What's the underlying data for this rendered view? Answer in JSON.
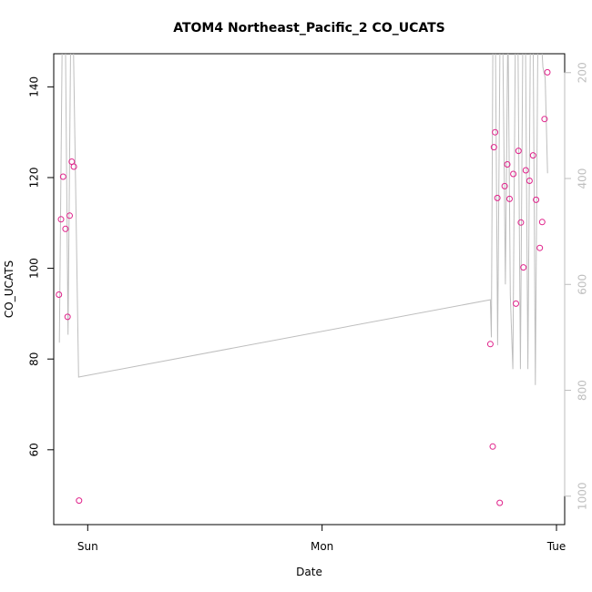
{
  "chart_data": {
    "type": "scatter",
    "title": "ATOM4 Northeast_Pacific_2 CO_UCATS",
    "xlabel": "Date",
    "ylabel": "CO_UCATS",
    "xlim": [
      -0.145,
      2.035
    ],
    "ylim": [
      43.5,
      147.3
    ],
    "x_ticks": [
      {
        "label": "Sun",
        "value": 0
      },
      {
        "label": "Mon",
        "value": 1
      },
      {
        "label": "Tue",
        "value": 2
      }
    ],
    "y_ticks": [
      60,
      80,
      100,
      120,
      140
    ],
    "y2": {
      "lim": [
        1053.7,
        164.3
      ],
      "ticks": [
        200,
        400,
        600,
        800,
        1000
      ],
      "color": "#bebebe"
    },
    "grid": false,
    "legend": "none",
    "point_color": "#e0218a",
    "line_color": "#bebebe",
    "series": [
      {
        "kind": "points",
        "x": [
          -0.123,
          -0.114,
          -0.105,
          -0.095,
          -0.086,
          -0.077,
          -0.068,
          -0.059,
          -0.037,
          1.718,
          1.728,
          1.733,
          1.738,
          1.748,
          1.758,
          1.779,
          1.79,
          1.8,
          1.816,
          1.827,
          1.838,
          1.848,
          1.859,
          1.869,
          1.885,
          1.9,
          1.913,
          1.929,
          1.939,
          1.949,
          1.961
        ],
        "y": [
          94.2,
          110.8,
          120.2,
          108.7,
          89.3,
          111.6,
          123.5,
          122.4,
          48.8,
          83.3,
          60.7,
          126.7,
          130.0,
          115.5,
          48.3,
          118.1,
          122.9,
          115.3,
          120.8,
          92.2,
          125.9,
          110.1,
          100.2,
          121.6,
          119.3,
          124.9,
          115.1,
          104.5,
          110.2,
          132.9,
          143.2
        ]
      },
      {
        "kind": "line",
        "axis": "y2",
        "x": [
          -0.121,
          -0.108,
          -0.096,
          -0.084,
          -0.072,
          -0.063,
          -0.039,
          1.718,
          1.722,
          1.729,
          1.739,
          1.749,
          1.76,
          1.77,
          1.782,
          1.793,
          1.803,
          1.814,
          1.825,
          1.835,
          1.846,
          1.857,
          1.867,
          1.878,
          1.889,
          1.9,
          1.91,
          1.921,
          1.932,
          1.942,
          1.952,
          1.962
        ],
        "y": [
          710,
          100,
          90,
          695,
          95,
          92,
          775,
          629,
          700,
          100,
          95,
          715,
          90,
          95,
          600,
          95,
          620,
          760,
          100,
          90,
          760,
          100,
          95,
          760,
          120,
          105,
          790,
          100,
          110,
          190,
          210,
          390
        ]
      }
    ]
  }
}
